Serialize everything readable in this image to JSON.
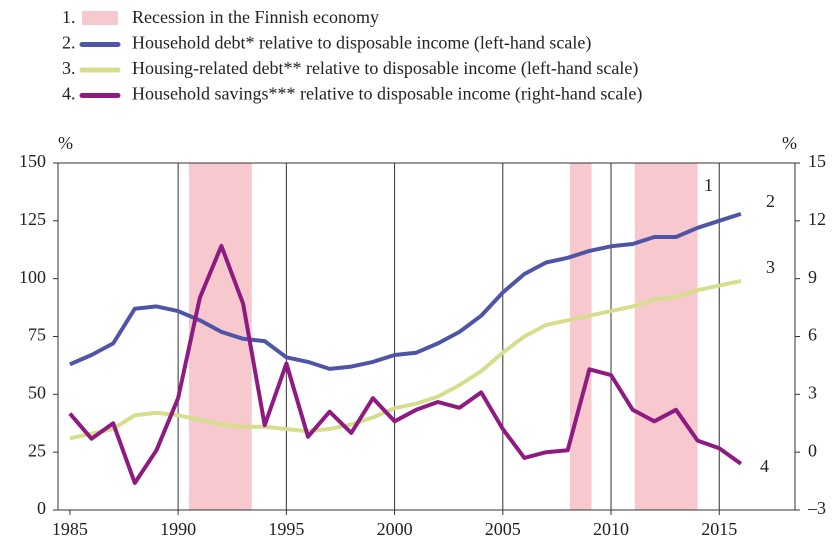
{
  "chart_data": {
    "type": "line",
    "y_label": "%",
    "y2_label": "%",
    "recession": {
      "name": "Recession in the Finnish economy",
      "number": "1.",
      "label": "1",
      "color": "#f7c9cf",
      "periods": [
        [
          1990.5,
          1993.4
        ],
        [
          2008.1,
          2009.1
        ],
        [
          2011.1,
          2014.0
        ]
      ]
    },
    "x": [
      1985,
      1986,
      1987,
      1988,
      1989,
      1990,
      1991,
      1992,
      1993,
      1994,
      1995,
      1996,
      1997,
      1998,
      1999,
      2000,
      2001,
      2002,
      2003,
      2004,
      2005,
      2006,
      2007,
      2008,
      2009,
      2010,
      2011,
      2012,
      2013,
      2014,
      2015,
      2016
    ],
    "series": [
      {
        "name": "Household debt* relative to disposable income (left-hand scale)",
        "number": "2.",
        "label": "2",
        "color": "#4f55a6",
        "axis": "y",
        "values": [
          63,
          67,
          72,
          87,
          88,
          86,
          82,
          77,
          74,
          73,
          66,
          64,
          61,
          62,
          64,
          67,
          68,
          72,
          77,
          84,
          94,
          102,
          107,
          109,
          112,
          114,
          115,
          118,
          118,
          122,
          125,
          128
        ]
      },
      {
        "name": "Housing-related debt** relative to disposable income (left-hand scale)",
        "number": "3.",
        "label": "3",
        "color": "#d6de8e",
        "axis": "y",
        "values": [
          31,
          33,
          35,
          41,
          42,
          41,
          39,
          37,
          36,
          36,
          35,
          34,
          35,
          37,
          40,
          44,
          46,
          49,
          54,
          60,
          68,
          75,
          80,
          82,
          84,
          86,
          88,
          91,
          92,
          95,
          97,
          99
        ]
      },
      {
        "name": "Household savings*** relative to disposable income (right-hand scale)",
        "number": "4.",
        "label": "4",
        "color": "#8e1a82",
        "axis": "y2",
        "values": [
          2.0,
          0.7,
          1.5,
          -1.6,
          0.1,
          2.8,
          8.0,
          10.7,
          7.7,
          1.4,
          4.6,
          0.8,
          2.1,
          1.0,
          2.8,
          1.6,
          2.2,
          2.6,
          2.3,
          3.1,
          1.2,
          -0.3,
          0.0,
          0.1,
          4.3,
          4.0,
          2.2,
          1.6,
          2.2,
          0.6,
          0.2,
          -0.6
        ]
      }
    ],
    "xlim": [
      1984.45,
      2018.5
    ],
    "xticks": [
      1985,
      1990,
      1995,
      2000,
      2005,
      2010,
      2015
    ],
    "ylim": [
      0,
      150
    ],
    "yticks": [
      0,
      25,
      50,
      75,
      100,
      125,
      150
    ],
    "y2lim": [
      -3,
      15
    ],
    "y2ticks": [
      {
        "value": -3,
        "label": "–3"
      },
      0,
      3,
      6,
      9,
      12,
      15
    ],
    "grid": true
  }
}
